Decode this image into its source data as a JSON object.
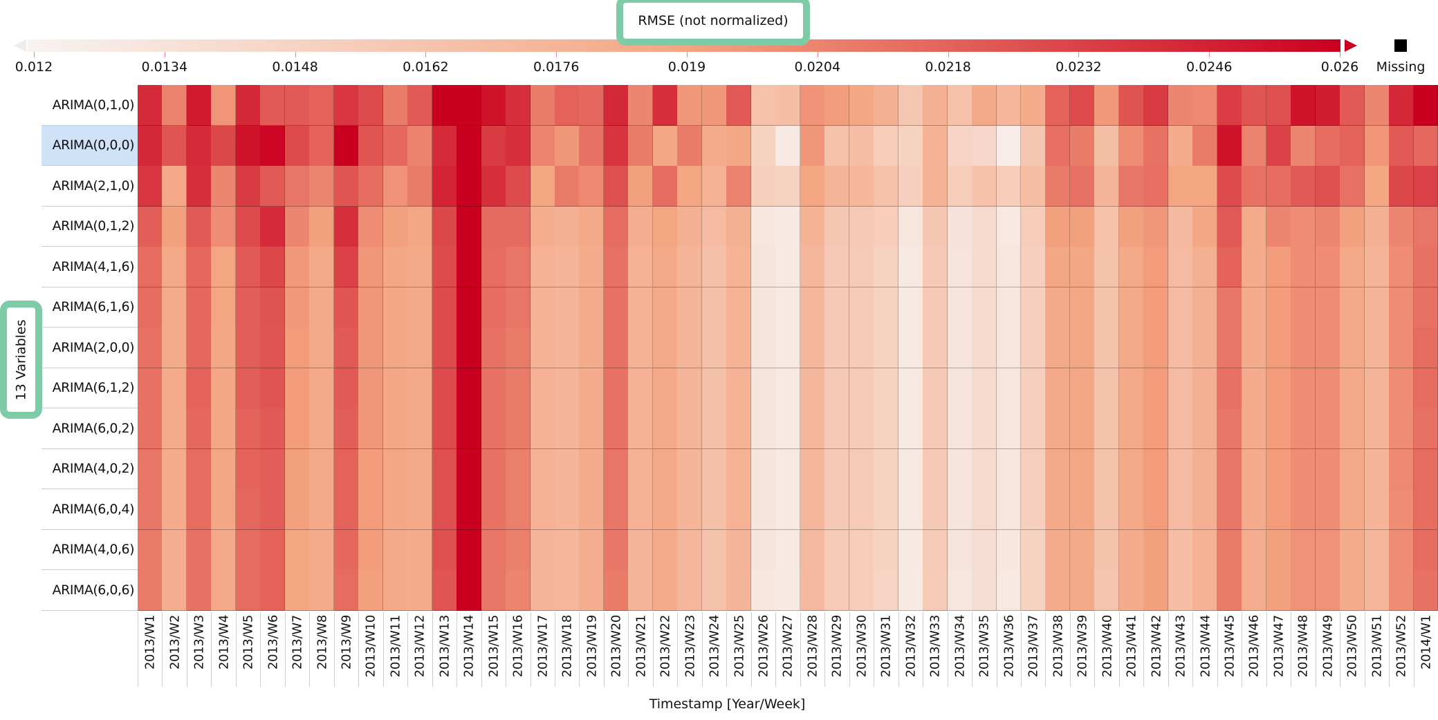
{
  "chart_data": {
    "type": "heatmap",
    "legend": {
      "title": "RMSE (not normalized)",
      "ticks": [
        "0.012",
        "0.0134",
        "0.0148",
        "0.0162",
        "0.0176",
        "0.019",
        "0.0204",
        "0.0218",
        "0.0232",
        "0.0246",
        "0.026"
      ],
      "range": [
        0.012,
        0.026
      ],
      "colors": {
        "low": "#f7f3f1",
        "mid": "#f4a582",
        "high": "#ca0020"
      },
      "missing_label": "Missing",
      "missing_color": "#000000",
      "placement": "top"
    },
    "ylabel": "13 Variables",
    "xlabel": "Timestamp [Year/Week]",
    "selected_row": "ARIMA(0,0,0)",
    "selected_color": "#cfe2f8",
    "rows": [
      "ARIMA(0,1,0)",
      "ARIMA(0,0,0)",
      "ARIMA(2,1,0)",
      "ARIMA(0,1,2)",
      "ARIMA(4,1,6)",
      "ARIMA(6,1,6)",
      "ARIMA(2,0,0)",
      "ARIMA(6,1,2)",
      "ARIMA(6,0,2)",
      "ARIMA(4,0,2)",
      "ARIMA(6,0,4)",
      "ARIMA(4,0,6)",
      "ARIMA(6,0,6)"
    ],
    "columns": [
      "2013/W1",
      "2013/W2",
      "2013/W3",
      "2013/W4",
      "2013/W5",
      "2013/W6",
      "2013/W7",
      "2013/W8",
      "2013/W9",
      "2013/W10",
      "2013/W11",
      "2013/W12",
      "2013/W13",
      "2013/W14",
      "2013/W15",
      "2013/W16",
      "2013/W17",
      "2013/W18",
      "2013/W19",
      "2013/W20",
      "2013/W21",
      "2013/W22",
      "2013/W23",
      "2013/W24",
      "2013/W25",
      "2013/W26",
      "2013/W27",
      "2013/W28",
      "2013/W29",
      "2013/W30",
      "2013/W31",
      "2013/W32",
      "2013/W33",
      "2013/W34",
      "2013/W35",
      "2013/W36",
      "2013/W37",
      "2013/W38",
      "2013/W39",
      "2013/W40",
      "2013/W41",
      "2013/W42",
      "2013/W43",
      "2013/W44",
      "2013/W45",
      "2013/W46",
      "2013/W47",
      "2013/W48",
      "2013/W49",
      "2013/W50",
      "2013/W51",
      "2013/W52",
      "2014/W1"
    ],
    "values": [
      [
        0.0242,
        0.0205,
        0.025,
        0.0197,
        0.0243,
        0.0222,
        0.0222,
        0.0218,
        0.0237,
        0.0228,
        0.0208,
        0.0222,
        0.026,
        0.026,
        0.0252,
        0.024,
        0.0207,
        0.0218,
        0.0216,
        0.0243,
        0.0203,
        0.024,
        0.0196,
        0.0196,
        0.0222,
        0.0165,
        0.0168,
        0.0198,
        0.0193,
        0.0188,
        0.018,
        0.016,
        0.018,
        0.0165,
        0.0186,
        0.0175,
        0.0184,
        0.0218,
        0.0228,
        0.0195,
        0.0225,
        0.0235,
        0.0203,
        0.0202,
        0.0234,
        0.0224,
        0.0226,
        0.0252,
        0.0248,
        0.0222,
        0.0203,
        0.0243,
        0.026
      ],
      [
        0.0243,
        0.0224,
        0.0242,
        0.023,
        0.0252,
        0.0258,
        0.0228,
        0.0218,
        0.026,
        0.0224,
        0.0216,
        0.0205,
        0.0242,
        0.026,
        0.0235,
        0.024,
        0.0204,
        0.0196,
        0.0212,
        0.0238,
        0.0207,
        0.0188,
        0.0207,
        0.0184,
        0.0188,
        0.015,
        0.0128,
        0.0196,
        0.0165,
        0.0168,
        0.0155,
        0.015,
        0.0178,
        0.0148,
        0.0145,
        0.0126,
        0.016,
        0.0213,
        0.0207,
        0.0167,
        0.02,
        0.0212,
        0.0184,
        0.0208,
        0.0252,
        0.0205,
        0.0232,
        0.0203,
        0.0214,
        0.0218,
        0.0197,
        0.0222,
        0.0216
      ],
      [
        0.0237,
        0.0187,
        0.024,
        0.0203,
        0.0235,
        0.0222,
        0.021,
        0.0203,
        0.0224,
        0.0214,
        0.0198,
        0.0208,
        0.0245,
        0.026,
        0.024,
        0.0228,
        0.019,
        0.0208,
        0.0202,
        0.0226,
        0.0192,
        0.0214,
        0.019,
        0.0178,
        0.0205,
        0.0152,
        0.015,
        0.019,
        0.0176,
        0.0175,
        0.0165,
        0.0152,
        0.0178,
        0.0155,
        0.0165,
        0.0155,
        0.0168,
        0.0207,
        0.0212,
        0.0176,
        0.021,
        0.0213,
        0.019,
        0.019,
        0.0228,
        0.0212,
        0.0214,
        0.0222,
        0.0226,
        0.0212,
        0.019,
        0.023,
        0.0232
      ],
      [
        0.022,
        0.0192,
        0.0222,
        0.02,
        0.0228,
        0.0242,
        0.0203,
        0.0192,
        0.024,
        0.02,
        0.0192,
        0.0188,
        0.023,
        0.026,
        0.0215,
        0.0215,
        0.0183,
        0.018,
        0.0186,
        0.0214,
        0.0182,
        0.019,
        0.018,
        0.017,
        0.018,
        0.0132,
        0.013,
        0.0178,
        0.016,
        0.0158,
        0.0155,
        0.0132,
        0.016,
        0.0135,
        0.0142,
        0.013,
        0.0155,
        0.0192,
        0.0192,
        0.0165,
        0.0192,
        0.0196,
        0.0172,
        0.0188,
        0.0222,
        0.0185,
        0.0203,
        0.02,
        0.0203,
        0.0192,
        0.018,
        0.0203,
        0.021
      ],
      [
        0.0214,
        0.0186,
        0.0216,
        0.019,
        0.0222,
        0.023,
        0.0195,
        0.0186,
        0.0232,
        0.0196,
        0.0188,
        0.0186,
        0.0228,
        0.026,
        0.0214,
        0.021,
        0.0178,
        0.0176,
        0.0184,
        0.0212,
        0.0178,
        0.0186,
        0.0176,
        0.0166,
        0.0178,
        0.0134,
        0.013,
        0.0174,
        0.0158,
        0.0156,
        0.015,
        0.013,
        0.0158,
        0.0134,
        0.0142,
        0.0132,
        0.0152,
        0.0188,
        0.0188,
        0.0164,
        0.0186,
        0.0194,
        0.017,
        0.018,
        0.0218,
        0.0184,
        0.0194,
        0.02,
        0.02,
        0.0186,
        0.0176,
        0.02,
        0.0212
      ],
      [
        0.0214,
        0.0185,
        0.0216,
        0.019,
        0.022,
        0.0225,
        0.0195,
        0.0186,
        0.0224,
        0.0196,
        0.0188,
        0.0186,
        0.0228,
        0.026,
        0.0214,
        0.021,
        0.0178,
        0.0176,
        0.0184,
        0.0212,
        0.0178,
        0.0186,
        0.0176,
        0.0166,
        0.0178,
        0.0134,
        0.013,
        0.0174,
        0.0158,
        0.0156,
        0.015,
        0.013,
        0.0158,
        0.0134,
        0.0142,
        0.0132,
        0.0152,
        0.0186,
        0.0188,
        0.0164,
        0.0186,
        0.0194,
        0.017,
        0.018,
        0.021,
        0.0184,
        0.0194,
        0.02,
        0.02,
        0.0186,
        0.0176,
        0.02,
        0.0212
      ],
      [
        0.0212,
        0.0185,
        0.0216,
        0.0188,
        0.022,
        0.0224,
        0.0194,
        0.0186,
        0.0222,
        0.0196,
        0.0188,
        0.0186,
        0.0228,
        0.026,
        0.0212,
        0.0208,
        0.0178,
        0.0176,
        0.0184,
        0.0212,
        0.0178,
        0.0186,
        0.0176,
        0.0166,
        0.0178,
        0.0134,
        0.013,
        0.0174,
        0.0158,
        0.0156,
        0.015,
        0.013,
        0.0158,
        0.0134,
        0.0142,
        0.0132,
        0.0152,
        0.0186,
        0.0188,
        0.0164,
        0.0186,
        0.0194,
        0.017,
        0.018,
        0.021,
        0.0184,
        0.0194,
        0.02,
        0.02,
        0.0186,
        0.0176,
        0.02,
        0.0214
      ],
      [
        0.0212,
        0.0185,
        0.0218,
        0.0188,
        0.022,
        0.0224,
        0.0194,
        0.0186,
        0.0222,
        0.0196,
        0.0188,
        0.0186,
        0.0228,
        0.026,
        0.0212,
        0.0208,
        0.0178,
        0.0176,
        0.0184,
        0.0212,
        0.0178,
        0.0186,
        0.0176,
        0.0166,
        0.0178,
        0.0134,
        0.013,
        0.0174,
        0.0158,
        0.0156,
        0.015,
        0.013,
        0.0158,
        0.0134,
        0.0142,
        0.0132,
        0.0152,
        0.0186,
        0.0188,
        0.0164,
        0.0186,
        0.0194,
        0.017,
        0.018,
        0.0212,
        0.0184,
        0.0194,
        0.02,
        0.02,
        0.0186,
        0.0176,
        0.02,
        0.0214
      ],
      [
        0.0212,
        0.0184,
        0.0216,
        0.0188,
        0.0218,
        0.0222,
        0.0194,
        0.0186,
        0.022,
        0.0196,
        0.0188,
        0.0186,
        0.0228,
        0.026,
        0.0212,
        0.0208,
        0.0178,
        0.0176,
        0.0184,
        0.0212,
        0.0178,
        0.0186,
        0.0176,
        0.0166,
        0.0178,
        0.0134,
        0.013,
        0.0174,
        0.0158,
        0.0156,
        0.015,
        0.013,
        0.0158,
        0.0134,
        0.0142,
        0.0132,
        0.0152,
        0.0186,
        0.0188,
        0.0164,
        0.0186,
        0.0194,
        0.017,
        0.018,
        0.021,
        0.0184,
        0.0194,
        0.02,
        0.02,
        0.0186,
        0.0176,
        0.02,
        0.0212
      ],
      [
        0.021,
        0.0184,
        0.0214,
        0.0188,
        0.0218,
        0.022,
        0.0192,
        0.0186,
        0.0218,
        0.0194,
        0.0188,
        0.0186,
        0.0226,
        0.026,
        0.0212,
        0.0206,
        0.0178,
        0.0176,
        0.0184,
        0.021,
        0.0178,
        0.0186,
        0.0176,
        0.0166,
        0.0178,
        0.0134,
        0.013,
        0.0174,
        0.0158,
        0.0156,
        0.015,
        0.013,
        0.0158,
        0.0134,
        0.0142,
        0.0132,
        0.0152,
        0.0186,
        0.0188,
        0.0164,
        0.0186,
        0.0194,
        0.017,
        0.018,
        0.021,
        0.0184,
        0.0194,
        0.02,
        0.02,
        0.0186,
        0.0176,
        0.0202,
        0.0214
      ],
      [
        0.021,
        0.0184,
        0.0214,
        0.0188,
        0.0216,
        0.022,
        0.0192,
        0.0186,
        0.0218,
        0.0194,
        0.0188,
        0.0186,
        0.0226,
        0.026,
        0.0212,
        0.0206,
        0.0178,
        0.0176,
        0.0184,
        0.021,
        0.0178,
        0.0186,
        0.0176,
        0.0166,
        0.0178,
        0.0134,
        0.013,
        0.0174,
        0.0158,
        0.0156,
        0.015,
        0.013,
        0.0158,
        0.0134,
        0.0142,
        0.0132,
        0.0152,
        0.0186,
        0.0188,
        0.0164,
        0.0186,
        0.0194,
        0.017,
        0.018,
        0.021,
        0.0184,
        0.0194,
        0.02,
        0.02,
        0.0186,
        0.0176,
        0.02,
        0.0214
      ],
      [
        0.0208,
        0.0182,
        0.0212,
        0.0186,
        0.0214,
        0.0218,
        0.019,
        0.0184,
        0.0216,
        0.0194,
        0.0186,
        0.0184,
        0.0226,
        0.026,
        0.021,
        0.0206,
        0.0176,
        0.0174,
        0.0182,
        0.021,
        0.0176,
        0.0184,
        0.0174,
        0.0164,
        0.0176,
        0.0134,
        0.013,
        0.0172,
        0.0156,
        0.0154,
        0.015,
        0.013,
        0.0156,
        0.0134,
        0.014,
        0.0132,
        0.015,
        0.0184,
        0.0186,
        0.0164,
        0.0184,
        0.0192,
        0.0168,
        0.0178,
        0.0208,
        0.0182,
        0.0192,
        0.0198,
        0.0198,
        0.0184,
        0.0174,
        0.02,
        0.0214
      ],
      [
        0.0208,
        0.0182,
        0.0212,
        0.0186,
        0.0214,
        0.0218,
        0.019,
        0.0184,
        0.0214,
        0.0192,
        0.0186,
        0.0184,
        0.0224,
        0.026,
        0.021,
        0.0204,
        0.0176,
        0.0174,
        0.0182,
        0.0208,
        0.0176,
        0.0184,
        0.0174,
        0.0164,
        0.0176,
        0.0132,
        0.0128,
        0.0172,
        0.0156,
        0.0154,
        0.0148,
        0.0128,
        0.0156,
        0.0132,
        0.014,
        0.013,
        0.015,
        0.0184,
        0.0186,
        0.0162,
        0.0184,
        0.0192,
        0.0168,
        0.0178,
        0.0208,
        0.0182,
        0.0192,
        0.0198,
        0.0198,
        0.0184,
        0.0174,
        0.02,
        0.0212
      ]
    ]
  }
}
